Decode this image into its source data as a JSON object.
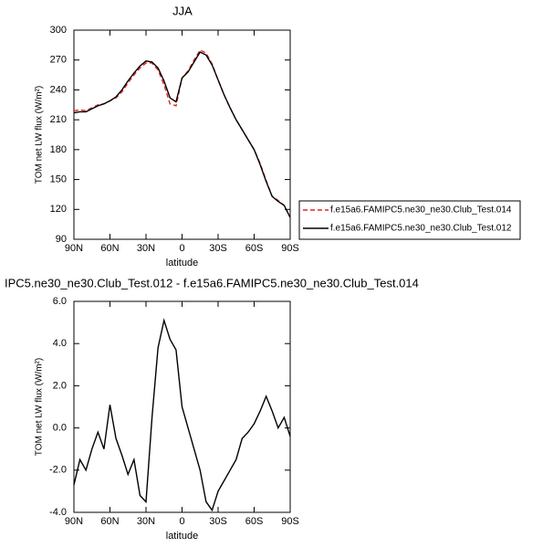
{
  "chart_data": [
    {
      "type": "line",
      "title": "JJA",
      "x_label": "latitude",
      "y_label": "TOM net LW flux (W/m²)",
      "x": [
        90,
        85,
        80,
        75,
        70,
        65,
        60,
        55,
        50,
        45,
        40,
        35,
        30,
        25,
        20,
        15,
        10,
        5,
        0,
        -5,
        -10,
        -15,
        -20,
        -25,
        -30,
        -35,
        -40,
        -45,
        -50,
        -55,
        -60,
        -65,
        -70,
        -75,
        -80,
        -85,
        -90
      ],
      "xlim": [
        90,
        -90
      ],
      "xticks": [
        {
          "value": 90,
          "label": "90N"
        },
        {
          "value": 60,
          "label": "60N"
        },
        {
          "value": 30,
          "label": "30N"
        },
        0,
        {
          "value": -30,
          "label": "30S"
        },
        {
          "value": -60,
          "label": "60S"
        },
        {
          "value": -90,
          "label": "90S"
        }
      ],
      "ylim": [
        90,
        300
      ],
      "yticks": [
        90,
        120,
        150,
        180,
        210,
        240,
        270,
        300
      ],
      "series": [
        {
          "name": "f.e15a6.FAMIPC5.ne30_ne30.Club_Test.014",
          "color": "#e0261f",
          "dashed": true,
          "values": [
            219,
            220,
            219,
            222,
            225,
            226,
            229,
            232,
            238,
            247,
            255,
            262,
            267,
            267,
            260,
            245,
            226,
            224,
            252,
            259,
            270,
            280,
            277,
            266,
            250,
            235,
            222,
            210,
            200,
            190,
            180,
            166,
            149,
            133,
            129,
            124,
            112
          ]
        },
        {
          "name": "f.e15a6.FAMIPC5.ne30_ne30.Club_Test.012",
          "color": "#000000",
          "dashed": false,
          "values": [
            217,
            218,
            218,
            221,
            224,
            226,
            229,
            233,
            240,
            249,
            257,
            264,
            269,
            268,
            262,
            249,
            232,
            228,
            252,
            258,
            268,
            278,
            275,
            265,
            250,
            235,
            222,
            210,
            200,
            190,
            180,
            165,
            148,
            133,
            128,
            124,
            112
          ]
        }
      ]
    },
    {
      "type": "line",
      "title": "IPC5.ne30_ne30.Club_Test.012 - f.e15a6.FAMIPC5.ne30_ne30.Club_Test.014",
      "x_label": "latitude",
      "y_label": "TOM net LW flux (W/m²)",
      "x": [
        90,
        85,
        80,
        75,
        70,
        65,
        60,
        55,
        50,
        45,
        40,
        35,
        30,
        25,
        20,
        15,
        10,
        5,
        0,
        -5,
        -10,
        -15,
        -20,
        -25,
        -30,
        -35,
        -40,
        -45,
        -50,
        -55,
        -60,
        -65,
        -70,
        -75,
        -80,
        -85,
        -90
      ],
      "xlim": [
        90,
        -90
      ],
      "xticks": [
        {
          "value": 90,
          "label": "90N"
        },
        {
          "value": 60,
          "label": "60N"
        },
        {
          "value": 30,
          "label": "30N"
        },
        0,
        {
          "value": -30,
          "label": "30S"
        },
        {
          "value": -60,
          "label": "60S"
        },
        {
          "value": -90,
          "label": "90S"
        }
      ],
      "ylim": [
        -4,
        6
      ],
      "yticks": [
        {
          "value": -4,
          "label": "-4.0"
        },
        {
          "value": -2,
          "label": "-2.0"
        },
        {
          "value": 0,
          "label": "0.0"
        },
        {
          "value": 2,
          "label": "2.0"
        },
        {
          "value": 4,
          "label": "4.0"
        },
        {
          "value": 6,
          "label": "6.0"
        }
      ],
      "series": [
        {
          "color": "#000000",
          "dashed": false,
          "values": [
            -2.7,
            -1.5,
            -2.0,
            -1.0,
            -0.2,
            -1.0,
            1.1,
            -0.5,
            -1.3,
            -2.2,
            -1.5,
            -3.2,
            -3.5,
            0.5,
            3.8,
            5.1,
            4.2,
            3.7,
            1.0,
            0.0,
            -1.0,
            -2.0,
            -3.5,
            -3.9,
            -3.0,
            -2.5,
            -2.0,
            -1.5,
            -0.5,
            -0.2,
            0.2,
            0.8,
            1.5,
            0.8,
            0.0,
            0.5,
            -0.4
          ]
        }
      ]
    }
  ]
}
